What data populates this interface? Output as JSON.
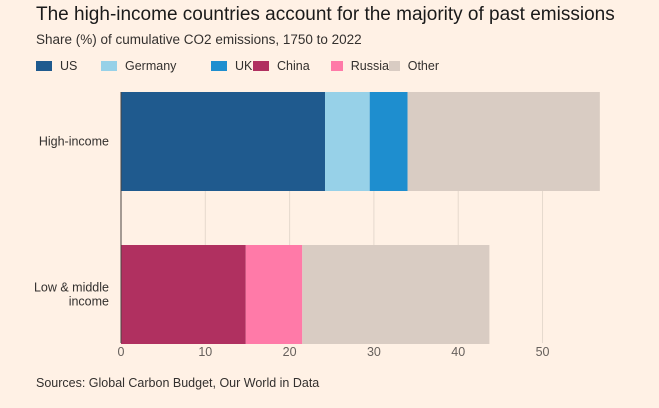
{
  "title": "The high-income countries account for the majority of past emissions",
  "subtitle": "Share (%) of cumulative CO2 emissions, 1750 to 2022",
  "source": "Sources: Global Carbon Budget, Our World in Data",
  "colors": {
    "US": "#1f5a8e",
    "Germany": "#97d1e8",
    "UK": "#1e8ecf",
    "China": "#b03060",
    "Russia": "#ff7aa8",
    "Other": "#d9ccc3"
  },
  "chart_data": {
    "type": "bar",
    "orientation": "horizontal",
    "stacked": true,
    "categories": [
      "High-income",
      "Low & middle income"
    ],
    "category_lines": [
      [
        "High-income"
      ],
      [
        "Low & middle",
        "income"
      ]
    ],
    "series": [
      {
        "name": "US",
        "values": [
          24.2,
          0
        ]
      },
      {
        "name": "Germany",
        "values": [
          5.3,
          0
        ]
      },
      {
        "name": "UK",
        "values": [
          4.5,
          0
        ]
      },
      {
        "name": "China",
        "values": [
          0,
          14.8
        ]
      },
      {
        "name": "Russia",
        "values": [
          0,
          6.7
        ]
      },
      {
        "name": "Other",
        "values": [
          22.8,
          22.2
        ]
      }
    ],
    "xlim": [
      0,
      56.7
    ],
    "xticks": [
      0,
      10,
      20,
      30,
      40,
      50
    ],
    "grid": true,
    "legend_position": "top"
  }
}
